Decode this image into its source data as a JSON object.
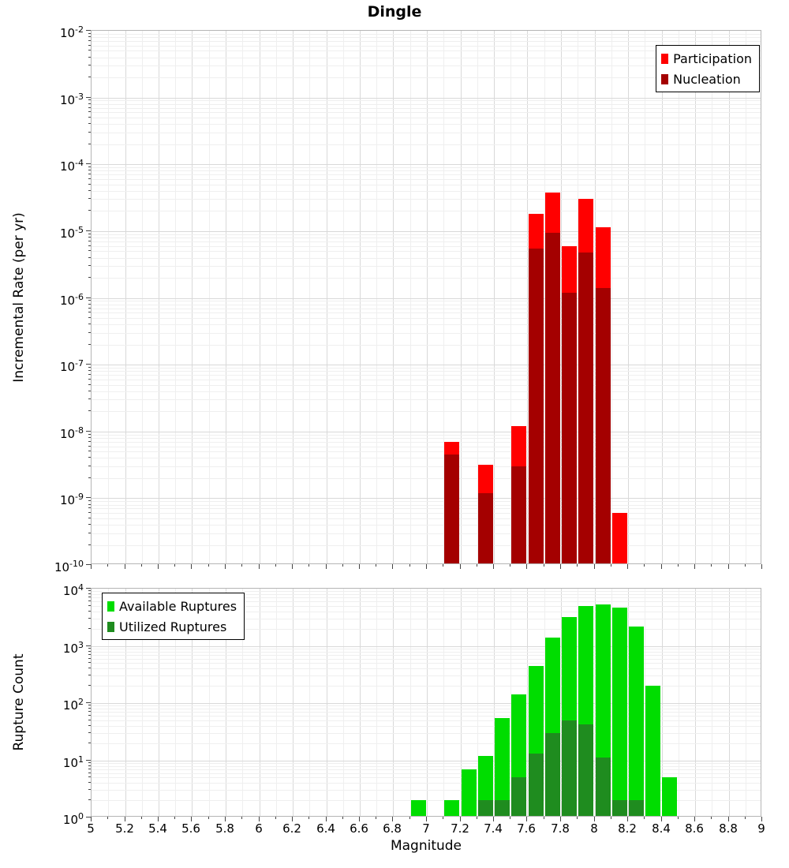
{
  "title": "Dingle",
  "chart_data": [
    {
      "type": "bar",
      "ylabel": "Incremental Rate (per yr)",
      "x": [
        7.15,
        7.35,
        7.55,
        7.65,
        7.75,
        7.85,
        7.95,
        8.05,
        8.15
      ],
      "bin_width": 0.1,
      "xlim": [
        5,
        9
      ],
      "ylog_range": [
        -10,
        -2
      ],
      "yticks": [
        "10^-2",
        "10^-3",
        "10^-4",
        "10^-5",
        "10^-6",
        "10^-7",
        "10^-8",
        "10^-9",
        "10^-10"
      ],
      "grid": true,
      "legend_position": "top-right",
      "series": [
        {
          "name": "Participation",
          "color": "#ff0000",
          "values": [
            7e-09,
            3.2e-09,
            1.2e-08,
            1.8e-05,
            3.8e-05,
            6e-06,
            3e-05,
            1.15e-05,
            6e-10
          ]
        },
        {
          "name": "Nucleation",
          "color": "#a40000",
          "values": [
            4.5e-09,
            1.2e-09,
            3e-09,
            5.5e-06,
            9.5e-06,
            1.2e-06,
            4.8e-06,
            1.4e-06,
            0
          ]
        }
      ]
    },
    {
      "type": "bar",
      "xlabel": "Magnitude",
      "ylabel": "Rupture Count",
      "x": [
        6.95,
        7.15,
        7.25,
        7.35,
        7.45,
        7.55,
        7.65,
        7.75,
        7.85,
        7.95,
        8.05,
        8.15,
        8.25,
        8.35,
        8.45
      ],
      "bin_width": 0.1,
      "xlim": [
        5,
        9
      ],
      "ylog_range": [
        0,
        4
      ],
      "yticks": [
        "10^4",
        "10^3",
        "10^2",
        "10^1",
        "10^0"
      ],
      "xticks": [
        "5",
        "5.2",
        "5.4",
        "5.6",
        "5.8",
        "6",
        "6.2",
        "6.4",
        "6.6",
        "6.8",
        "7",
        "7.2",
        "7.4",
        "7.6",
        "7.8",
        "8",
        "8.2",
        "8.4",
        "8.6",
        "8.8",
        "9"
      ],
      "grid": true,
      "legend_position": "top-left",
      "series": [
        {
          "name": "Available Ruptures",
          "color": "#00dd00",
          "values": [
            2,
            2,
            7,
            12,
            55,
            140,
            450,
            1400,
            3200,
            5000,
            5300,
            4600,
            2200,
            200,
            5
          ]
        },
        {
          "name": "Utilized Ruptures",
          "color": "#1f8c1f",
          "values": [
            0,
            1,
            0,
            2,
            2,
            5,
            13,
            30,
            50,
            42,
            11,
            2,
            2,
            0,
            0
          ]
        }
      ]
    }
  ]
}
